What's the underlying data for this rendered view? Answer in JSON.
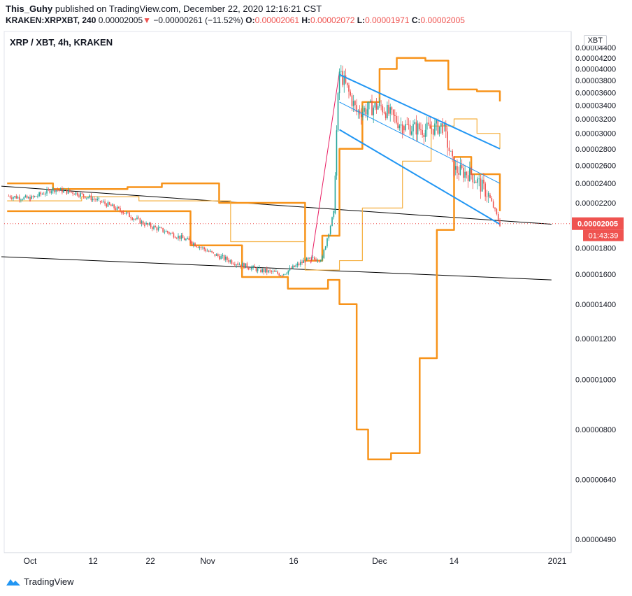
{
  "header": {
    "publisher": "This_Guhy",
    "published_text": "published on TradingView.com, December 22, 2020 12:16:21 CST",
    "symbol": "KRAKEN:XRPXBT, 240",
    "last": "0.00002005",
    "change_arrow": "▼",
    "change": "−0.00000261 (−11.52%)",
    "o_label": "O:",
    "o_value": "0.00002061",
    "h_label": "H:",
    "h_value": "0.00002072",
    "l_label": "L:",
    "l_value": "0.00001971",
    "c_label": "C:",
    "c_value": "0.00002005"
  },
  "badge": "XBT",
  "footer": {
    "brand": "TradingView",
    "icon": "tradingview-logo-icon"
  },
  "colors": {
    "bands_thick": "#f7931a",
    "bands_thin": "#f5b041",
    "channel": "#2196f3",
    "trendline": "#000000",
    "up": "#26a69a",
    "down": "#ef5350",
    "pink": "#e91e63"
  },
  "chart_data": {
    "type": "candlestick",
    "title": "XRP / XBT, 4h, KRAKEN",
    "price_scale": "log",
    "y_ticks": [
      "0.00004400",
      "0.00004200",
      "0.00004000",
      "0.00003800",
      "0.00003600",
      "0.00003400",
      "0.00003200",
      "0.00003000",
      "0.00002800",
      "0.00002600",
      "0.00002400",
      "0.00002200",
      "0.00001800",
      "0.00001600",
      "0.00001400",
      "0.00001200",
      "0.00001000",
      "0.00000800",
      "0.00000640",
      "0.00000490"
    ],
    "x_ticks": [
      "Oct",
      "12",
      "22",
      "Nov",
      "16",
      "Dec",
      "14",
      "2021"
    ],
    "last_price_label": "0.00002005",
    "countdown_label": "01:43:39",
    "price_path": [
      [
        "2020-09-27",
        2.27e-05
      ],
      [
        "2020-10-01",
        2.24e-05
      ],
      [
        "2020-10-05",
        2.34e-05
      ],
      [
        "2020-10-09",
        2.3e-05
      ],
      [
        "2020-10-13",
        2.22e-05
      ],
      [
        "2020-10-17",
        2.12e-05
      ],
      [
        "2020-10-21",
        2e-05
      ],
      [
        "2020-10-25",
        1.93e-05
      ],
      [
        "2020-10-29",
        1.85e-05
      ],
      [
        "2020-11-02",
        1.75e-05
      ],
      [
        "2020-11-06",
        1.68e-05
      ],
      [
        "2020-11-10",
        1.63e-05
      ],
      [
        "2020-11-14",
        1.6e-05
      ],
      [
        "2020-11-18",
        1.7e-05
      ],
      [
        "2020-11-21",
        1.72e-05
      ],
      [
        "2020-11-23",
        2.1e-05
      ],
      [
        "2020-11-24",
        3.95e-05
      ],
      [
        "2020-11-27",
        3.3e-05
      ],
      [
        "2020-12-01",
        3.4e-05
      ],
      [
        "2020-12-05",
        3.1e-05
      ],
      [
        "2020-12-09",
        3.05e-05
      ],
      [
        "2020-12-12",
        3.1e-05
      ],
      [
        "2020-12-14",
        2.55e-05
      ],
      [
        "2020-12-17",
        2.5e-05
      ],
      [
        "2020-12-20",
        2.28e-05
      ],
      [
        "2020-12-22",
        2e-05
      ]
    ],
    "upper_band": [
      [
        "2020-09-27",
        2.4e-05
      ],
      [
        "2020-10-05",
        2.34e-05
      ],
      [
        "2020-10-18",
        2.36e-05
      ],
      [
        "2020-10-24",
        2.4e-05
      ],
      [
        "2020-11-03",
        2.2e-05
      ],
      [
        "2020-11-18",
        1.7e-05
      ],
      [
        "2020-11-21",
        1.9e-05
      ],
      [
        "2020-11-24",
        2.8e-05
      ],
      [
        "2020-11-28",
        3.45e-05
      ],
      [
        "2020-12-01",
        4e-05
      ],
      [
        "2020-12-04",
        4.2e-05
      ],
      [
        "2020-12-09",
        4.15e-05
      ],
      [
        "2020-12-13",
        3.65e-05
      ],
      [
        "2020-12-18",
        3.62e-05
      ],
      [
        "2020-12-22",
        3.46e-05
      ]
    ],
    "lower_band": [
      [
        "2020-09-27",
        2.12e-05
      ],
      [
        "2020-10-05",
        2.12e-05
      ],
      [
        "2020-10-18",
        2.12e-05
      ],
      [
        "2020-10-29",
        1.82e-05
      ],
      [
        "2020-11-07",
        1.58e-05
      ],
      [
        "2020-11-15",
        1.5e-05
      ],
      [
        "2020-11-22",
        1.56e-05
      ],
      [
        "2020-11-24",
        1.4e-05
      ],
      [
        "2020-11-27",
        8e-06
      ],
      [
        "2020-11-29",
        7e-06
      ],
      [
        "2020-12-03",
        7.2e-06
      ],
      [
        "2020-12-08",
        1.1e-05
      ],
      [
        "2020-12-11",
        1.95e-05
      ],
      [
        "2020-12-14",
        2.7e-05
      ],
      [
        "2020-12-17",
        2.5e-05
      ],
      [
        "2020-12-22",
        2.12e-05
      ]
    ],
    "basis": [
      [
        "2020-09-27",
        2.22e-05
      ],
      [
        "2020-10-10",
        2.26e-05
      ],
      [
        "2020-10-20",
        2.22e-05
      ],
      [
        "2020-11-05",
        1.85e-05
      ],
      [
        "2020-11-18",
        1.63e-05
      ],
      [
        "2020-11-24",
        1.7e-05
      ],
      [
        "2020-11-28",
        2.15e-05
      ],
      [
        "2020-12-05",
        2.65e-05
      ],
      [
        "2020-12-10",
        3.1e-05
      ],
      [
        "2020-12-14",
        3.2e-05
      ],
      [
        "2020-12-18",
        3e-05
      ],
      [
        "2020-12-22",
        2.8e-05
      ]
    ],
    "channel_upper": [
      [
        "2020-11-24",
        3.9e-05
      ],
      [
        "2020-12-22",
        2.8e-05
      ]
    ],
    "channel_mid": [
      [
        "2020-11-24",
        3.45e-05
      ],
      [
        "2020-12-22",
        2.4e-05
      ]
    ],
    "channel_lower": [
      [
        "2020-11-24",
        3.05e-05
      ],
      [
        "2020-12-22",
        2e-05
      ]
    ],
    "trend_upper": [
      [
        "2020-09-26",
        2.37e-05
      ],
      [
        "2020-12-31",
        2e-05
      ]
    ],
    "trend_lower": [
      [
        "2020-09-26",
        1.73e-05
      ],
      [
        "2020-12-31",
        1.56e-05
      ]
    ],
    "pink_line": [
      [
        "2020-11-19",
        1.68e-05
      ],
      [
        "2020-11-24",
        3.95e-05
      ]
    ]
  }
}
